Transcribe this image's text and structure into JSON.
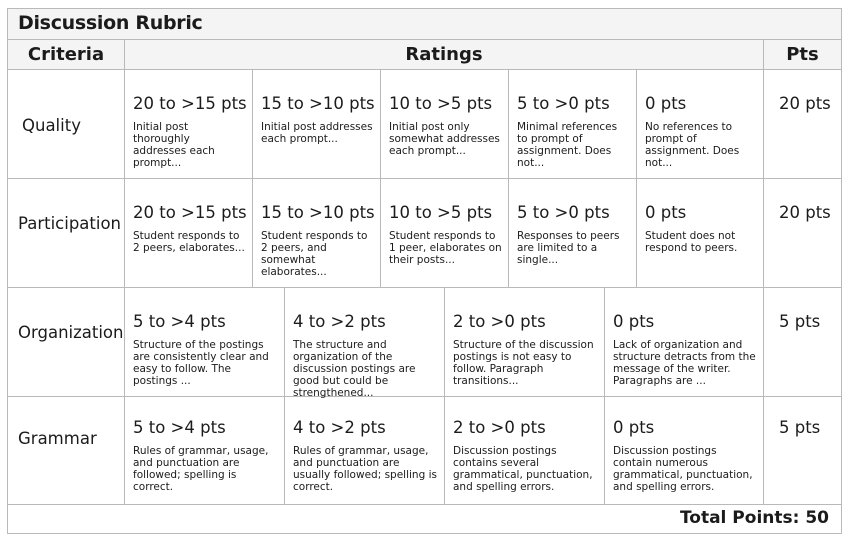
{
  "title": "Discussion Rubric",
  "headers": {
    "criteria": "Criteria",
    "ratings": "Ratings",
    "pts": "Pts"
  },
  "rows": [
    {
      "criterion": "Quality",
      "pts": "20 pts",
      "ratings": [
        {
          "points": "20 to >15 pts",
          "desc": "Initial post thoroughly addresses each prompt..."
        },
        {
          "points": "15 to >10 pts",
          "desc": "Initial post addresses each prompt..."
        },
        {
          "points": "10 to >5 pts",
          "desc": "Initial post  only somewhat addresses each prompt..."
        },
        {
          "points": "5 to >0 pts",
          "desc": "Minimal references to prompt of assignment. Does not..."
        },
        {
          "points": "0 pts",
          "desc": "No references to prompt of assignment. Does not..."
        }
      ]
    },
    {
      "criterion": "Participation",
      "pts": "20 pts",
      "ratings": [
        {
          "points": "20 to >15 pts",
          "desc": "Student responds to 2 peers, elaborates..."
        },
        {
          "points": "15 to >10 pts",
          "desc": "Student responds to 2 peers, and somewhat elaborates..."
        },
        {
          "points": "10 to >5 pts",
          "desc": "Student responds to 1 peer, elaborates on their posts..."
        },
        {
          "points": "5 to >0 pts",
          "desc": "Responses to peers are limited to a single..."
        },
        {
          "points": "0 pts",
          "desc": "Student does not respond to peers."
        }
      ]
    },
    {
      "criterion": "Organization",
      "pts": "5 pts",
      "ratings": [
        {
          "points": "5 to >4 pts",
          "desc": "Structure of the postings are consistently clear and easy to follow. The postings ..."
        },
        {
          "points": "4 to >2 pts",
          "desc": "The structure and organization of the discussion postings are good but could be strengthened..."
        },
        {
          "points": "2 to >0 pts",
          "desc": "Structure of the discussion postings is not easy to follow. Paragraph transitions..."
        },
        {
          "points": "0 pts",
          "desc": "Lack of organization and structure detracts from the message of the writer. Paragraphs are ..."
        }
      ]
    },
    {
      "criterion": "Grammar",
      "pts": "5 pts",
      "ratings": [
        {
          "points": "5 to >4 pts",
          "desc": "Rules of grammar, usage, and punctuation are followed; spelling is correct."
        },
        {
          "points": "4 to >2 pts",
          "desc": "Rules of grammar, usage, and punctuation are usually followed; spelling is correct."
        },
        {
          "points": "2 to >0 pts",
          "desc": "Discussion postings contains several grammatical, punctuation, and spelling errors."
        },
        {
          "points": "0 pts",
          "desc": "Discussion postings contain numerous grammatical, punctuation, and spelling errors."
        }
      ]
    }
  ],
  "total": "Total Points: 50"
}
